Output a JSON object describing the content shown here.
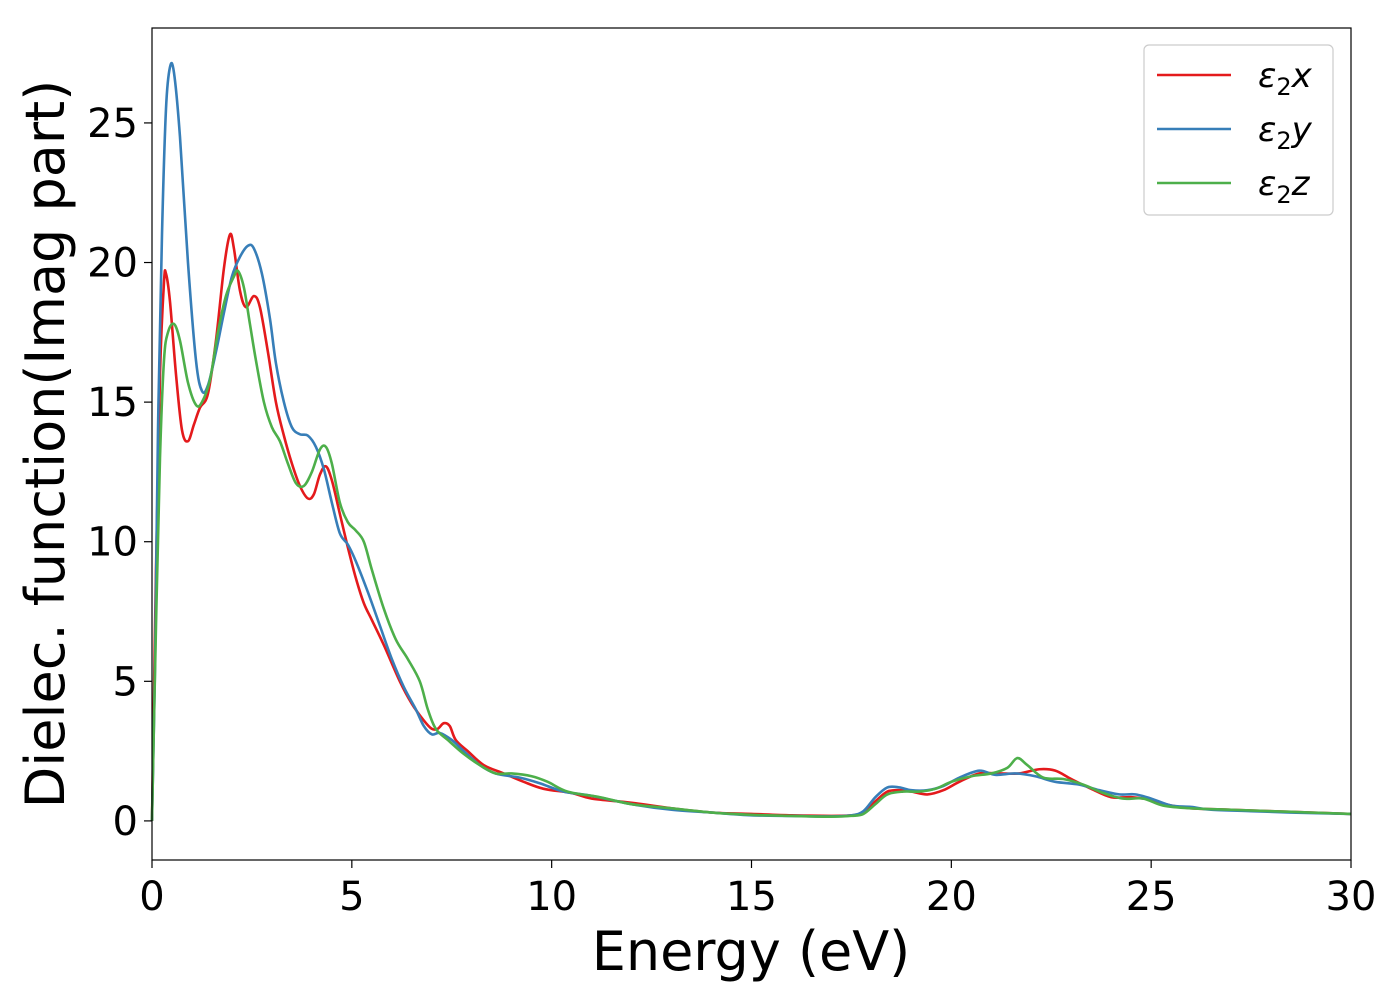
{
  "chart_data": {
    "type": "line",
    "xlabel": "Energy (eV)",
    "ylabel": "Dielec. function(Imag part)",
    "xlim": [
      0,
      30
    ],
    "ylim": [
      -1.4,
      28.4
    ],
    "xticks": [
      0,
      5,
      10,
      15,
      20,
      25,
      30
    ],
    "yticks": [
      0,
      5,
      10,
      15,
      20,
      25
    ],
    "grid": false,
    "legend_position": "top-right",
    "colors": {
      "x": "#e41a1c",
      "y": "#377eb8",
      "z": "#4daf4a"
    },
    "series": [
      {
        "name": "ε₂x",
        "legend": {
          "base": "ε",
          "sub": "2",
          "var": "x"
        },
        "color": "#e41a1c",
        "points": [
          [
            0,
            0
          ],
          [
            0.1,
            9
          ],
          [
            0.2,
            16
          ],
          [
            0.3,
            19.3
          ],
          [
            0.35,
            19.6
          ],
          [
            0.45,
            18.6
          ],
          [
            0.6,
            16
          ],
          [
            0.75,
            14
          ],
          [
            0.9,
            13.6
          ],
          [
            1.05,
            14.2
          ],
          [
            1.2,
            14.8
          ],
          [
            1.4,
            15.3
          ],
          [
            1.6,
            17.2
          ],
          [
            1.8,
            19.8
          ],
          [
            1.95,
            21
          ],
          [
            2.05,
            20.5
          ],
          [
            2.2,
            19
          ],
          [
            2.35,
            18.4
          ],
          [
            2.55,
            18.8
          ],
          [
            2.7,
            18.4
          ],
          [
            2.9,
            16.8
          ],
          [
            3.1,
            15
          ],
          [
            3.3,
            13.8
          ],
          [
            3.5,
            12.8
          ],
          [
            3.7,
            12
          ],
          [
            3.9,
            11.55
          ],
          [
            4.05,
            11.7
          ],
          [
            4.2,
            12.4
          ],
          [
            4.35,
            12.7
          ],
          [
            4.5,
            12.2
          ],
          [
            4.7,
            11
          ],
          [
            4.9,
            9.8
          ],
          [
            5.1,
            8.7
          ],
          [
            5.3,
            7.8
          ],
          [
            5.5,
            7.2
          ],
          [
            5.8,
            6.3
          ],
          [
            6.2,
            5
          ],
          [
            6.5,
            4.2
          ],
          [
            6.8,
            3.6
          ],
          [
            7.0,
            3.3
          ],
          [
            7.15,
            3.3
          ],
          [
            7.3,
            3.5
          ],
          [
            7.45,
            3.4
          ],
          [
            7.6,
            2.9
          ],
          [
            7.9,
            2.5
          ],
          [
            8.3,
            2
          ],
          [
            8.8,
            1.7
          ],
          [
            9.3,
            1.4
          ],
          [
            9.8,
            1.15
          ],
          [
            10.5,
            1
          ],
          [
            11,
            0.8
          ],
          [
            12,
            0.65
          ],
          [
            13,
            0.45
          ],
          [
            14,
            0.3
          ],
          [
            15,
            0.25
          ],
          [
            16,
            0.2
          ],
          [
            17,
            0.18
          ],
          [
            17.5,
            0.2
          ],
          [
            17.8,
            0.3
          ],
          [
            18.1,
            0.7
          ],
          [
            18.4,
            1.05
          ],
          [
            18.7,
            1.1
          ],
          [
            19,
            1.05
          ],
          [
            19.4,
            0.95
          ],
          [
            19.8,
            1.1
          ],
          [
            20.2,
            1.4
          ],
          [
            20.7,
            1.7
          ],
          [
            21.2,
            1.7
          ],
          [
            21.7,
            1.7
          ],
          [
            22.2,
            1.85
          ],
          [
            22.6,
            1.8
          ],
          [
            23,
            1.5
          ],
          [
            23.5,
            1.15
          ],
          [
            24,
            0.85
          ],
          [
            24.5,
            0.85
          ],
          [
            25,
            0.75
          ],
          [
            25.5,
            0.55
          ],
          [
            26,
            0.45
          ],
          [
            27,
            0.4
          ],
          [
            28,
            0.35
          ],
          [
            29,
            0.3
          ],
          [
            30,
            0.25
          ]
        ]
      },
      {
        "name": "ε₂y",
        "legend": {
          "base": "ε",
          "sub": "2",
          "var": "y"
        },
        "color": "#377eb8",
        "points": [
          [
            0,
            0
          ],
          [
            0.08,
            6
          ],
          [
            0.15,
            14
          ],
          [
            0.25,
            21
          ],
          [
            0.35,
            25.5
          ],
          [
            0.45,
            27
          ],
          [
            0.55,
            26.8
          ],
          [
            0.7,
            24.5
          ],
          [
            0.9,
            20
          ],
          [
            1.1,
            16.5
          ],
          [
            1.25,
            15.4
          ],
          [
            1.4,
            15.6
          ],
          [
            1.6,
            16.8
          ],
          [
            1.8,
            18.2
          ],
          [
            2.0,
            19.5
          ],
          [
            2.2,
            20.2
          ],
          [
            2.4,
            20.6
          ],
          [
            2.55,
            20.5
          ],
          [
            2.75,
            19.6
          ],
          [
            2.95,
            18
          ],
          [
            3.1,
            16.4
          ],
          [
            3.3,
            15
          ],
          [
            3.5,
            14.1
          ],
          [
            3.7,
            13.85
          ],
          [
            3.9,
            13.8
          ],
          [
            4.1,
            13.4
          ],
          [
            4.3,
            12.6
          ],
          [
            4.5,
            11.4
          ],
          [
            4.7,
            10.3
          ],
          [
            4.9,
            9.9
          ],
          [
            5.1,
            9.3
          ],
          [
            5.4,
            8.2
          ],
          [
            5.7,
            7
          ],
          [
            6.0,
            5.8
          ],
          [
            6.3,
            4.8
          ],
          [
            6.6,
            4
          ],
          [
            6.8,
            3.4
          ],
          [
            7.0,
            3.1
          ],
          [
            7.2,
            3.15
          ],
          [
            7.5,
            2.9
          ],
          [
            7.8,
            2.5
          ],
          [
            8.2,
            2
          ],
          [
            8.6,
            1.7
          ],
          [
            9.2,
            1.55
          ],
          [
            9.7,
            1.35
          ],
          [
            10.3,
            1.05
          ],
          [
            11,
            0.9
          ],
          [
            12,
            0.6
          ],
          [
            13,
            0.4
          ],
          [
            14,
            0.3
          ],
          [
            15,
            0.2
          ],
          [
            16,
            0.18
          ],
          [
            17,
            0.16
          ],
          [
            17.5,
            0.2
          ],
          [
            17.8,
            0.35
          ],
          [
            18.1,
            0.85
          ],
          [
            18.4,
            1.2
          ],
          [
            18.7,
            1.2
          ],
          [
            19,
            1.1
          ],
          [
            19.4,
            1.1
          ],
          [
            19.8,
            1.25
          ],
          [
            20.2,
            1.55
          ],
          [
            20.7,
            1.8
          ],
          [
            21.1,
            1.65
          ],
          [
            21.6,
            1.7
          ],
          [
            22.1,
            1.6
          ],
          [
            22.6,
            1.4
          ],
          [
            23.2,
            1.3
          ],
          [
            23.7,
            1.1
          ],
          [
            24.2,
            0.95
          ],
          [
            24.6,
            0.95
          ],
          [
            25,
            0.8
          ],
          [
            25.5,
            0.55
          ],
          [
            26,
            0.5
          ],
          [
            26.5,
            0.4
          ],
          [
            27.5,
            0.35
          ],
          [
            28.5,
            0.3
          ],
          [
            30,
            0.25
          ]
        ]
      },
      {
        "name": "ε₂z",
        "legend": {
          "base": "ε",
          "sub": "2",
          "var": "z"
        },
        "color": "#4daf4a",
        "points": [
          [
            0,
            0
          ],
          [
            0.1,
            7
          ],
          [
            0.2,
            13
          ],
          [
            0.3,
            16.5
          ],
          [
            0.4,
            17.5
          ],
          [
            0.55,
            17.8
          ],
          [
            0.7,
            17.2
          ],
          [
            0.9,
            15.7
          ],
          [
            1.1,
            14.9
          ],
          [
            1.25,
            15
          ],
          [
            1.45,
            15.8
          ],
          [
            1.65,
            17.5
          ],
          [
            1.85,
            18.8
          ],
          [
            2.05,
            19.5
          ],
          [
            2.15,
            19.7
          ],
          [
            2.3,
            19.1
          ],
          [
            2.45,
            17.8
          ],
          [
            2.6,
            16.5
          ],
          [
            2.8,
            15
          ],
          [
            3.0,
            14.1
          ],
          [
            3.2,
            13.6
          ],
          [
            3.4,
            12.8
          ],
          [
            3.6,
            12.1
          ],
          [
            3.8,
            12
          ],
          [
            4.0,
            12.5
          ],
          [
            4.2,
            13.3
          ],
          [
            4.35,
            13.4
          ],
          [
            4.5,
            12.8
          ],
          [
            4.7,
            11.4
          ],
          [
            4.9,
            10.7
          ],
          [
            5.1,
            10.4
          ],
          [
            5.3,
            10
          ],
          [
            5.5,
            9
          ],
          [
            5.8,
            7.6
          ],
          [
            6.1,
            6.5
          ],
          [
            6.4,
            5.8
          ],
          [
            6.7,
            5
          ],
          [
            6.9,
            4
          ],
          [
            7.1,
            3.3
          ],
          [
            7.4,
            2.9
          ],
          [
            7.8,
            2.4
          ],
          [
            8.2,
            2
          ],
          [
            8.6,
            1.7
          ],
          [
            9.0,
            1.7
          ],
          [
            9.5,
            1.6
          ],
          [
            9.9,
            1.4
          ],
          [
            10.4,
            1.05
          ],
          [
            11.2,
            0.85
          ],
          [
            12,
            0.6
          ],
          [
            13,
            0.45
          ],
          [
            14,
            0.3
          ],
          [
            15,
            0.22
          ],
          [
            16,
            0.18
          ],
          [
            17,
            0.15
          ],
          [
            17.5,
            0.18
          ],
          [
            17.8,
            0.25
          ],
          [
            18.1,
            0.6
          ],
          [
            18.4,
            0.95
          ],
          [
            18.8,
            1.05
          ],
          [
            19.2,
            1.05
          ],
          [
            19.6,
            1.15
          ],
          [
            20.0,
            1.4
          ],
          [
            20.5,
            1.6
          ],
          [
            21.0,
            1.7
          ],
          [
            21.4,
            1.9
          ],
          [
            21.65,
            2.25
          ],
          [
            21.9,
            2.0
          ],
          [
            22.3,
            1.55
          ],
          [
            22.8,
            1.5
          ],
          [
            23.3,
            1.3
          ],
          [
            23.8,
            1.0
          ],
          [
            24.3,
            0.8
          ],
          [
            24.8,
            0.8
          ],
          [
            25.3,
            0.55
          ],
          [
            26,
            0.45
          ],
          [
            27,
            0.4
          ],
          [
            28,
            0.35
          ],
          [
            29,
            0.3
          ],
          [
            30,
            0.25
          ]
        ]
      }
    ]
  }
}
